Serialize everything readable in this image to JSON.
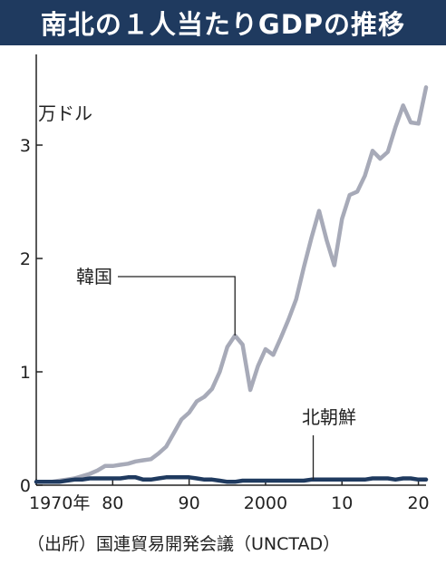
{
  "title": "南北の１人当たりGDPの推移",
  "unit": "万ドル",
  "source": "（出所）国連貿易開発会議（UNCTAD）",
  "colors": {
    "header": "#1f3a5f",
    "south": "#a7aab8",
    "north": "#1f3a5f"
  },
  "chart_data": {
    "type": "line",
    "title": "南北の１人当たりGDPの推移",
    "ylabel": "万ドル",
    "xlabel": "",
    "xlim": [
      1970,
      2021
    ],
    "ylim": [
      0,
      3.6
    ],
    "x_ticks": [
      1970,
      1980,
      1990,
      2000,
      2010,
      2020
    ],
    "x_tick_labels": [
      "1970年",
      "80",
      "90",
      "2000",
      "10",
      "20"
    ],
    "y_ticks": [
      0,
      1,
      2,
      3
    ],
    "y_tick_labels": [
      "0",
      "1",
      "2",
      "3"
    ],
    "grid": false,
    "x": [
      1970,
      1971,
      1972,
      1973,
      1974,
      1975,
      1976,
      1977,
      1978,
      1979,
      1980,
      1981,
      1982,
      1983,
      1984,
      1985,
      1986,
      1987,
      1988,
      1989,
      1990,
      1991,
      1992,
      1993,
      1994,
      1995,
      1996,
      1997,
      1998,
      1999,
      2000,
      2001,
      2002,
      2003,
      2004,
      2005,
      2006,
      2007,
      2008,
      2009,
      2010,
      2011,
      2012,
      2013,
      2014,
      2015,
      2016,
      2017,
      2018,
      2019,
      2020,
      2021
    ],
    "series": [
      {
        "name": "韓国",
        "values": [
          0.03,
          0.03,
          0.03,
          0.04,
          0.05,
          0.06,
          0.08,
          0.1,
          0.13,
          0.17,
          0.17,
          0.18,
          0.19,
          0.21,
          0.22,
          0.23,
          0.28,
          0.34,
          0.46,
          0.58,
          0.64,
          0.74,
          0.78,
          0.85,
          1.0,
          1.22,
          1.32,
          1.24,
          0.84,
          1.05,
          1.2,
          1.15,
          1.3,
          1.46,
          1.64,
          1.92,
          2.18,
          2.42,
          2.16,
          1.94,
          2.35,
          2.56,
          2.59,
          2.73,
          2.95,
          2.88,
          2.94,
          3.16,
          3.35,
          3.2,
          3.19,
          3.51
        ]
      },
      {
        "name": "北朝鮮",
        "values": [
          0.03,
          0.03,
          0.03,
          0.03,
          0.04,
          0.05,
          0.05,
          0.06,
          0.06,
          0.06,
          0.06,
          0.06,
          0.07,
          0.07,
          0.05,
          0.05,
          0.06,
          0.07,
          0.07,
          0.07,
          0.07,
          0.06,
          0.05,
          0.05,
          0.04,
          0.03,
          0.03,
          0.04,
          0.04,
          0.04,
          0.04,
          0.04,
          0.04,
          0.04,
          0.04,
          0.04,
          0.05,
          0.05,
          0.05,
          0.05,
          0.05,
          0.05,
          0.05,
          0.05,
          0.06,
          0.06,
          0.06,
          0.05,
          0.06,
          0.06,
          0.05,
          0.05
        ]
      }
    ],
    "annotations": [
      {
        "text": "韓国",
        "series": 0,
        "x": 1996
      },
      {
        "text": "北朝鮮",
        "series": 1,
        "x": 2006
      }
    ]
  }
}
